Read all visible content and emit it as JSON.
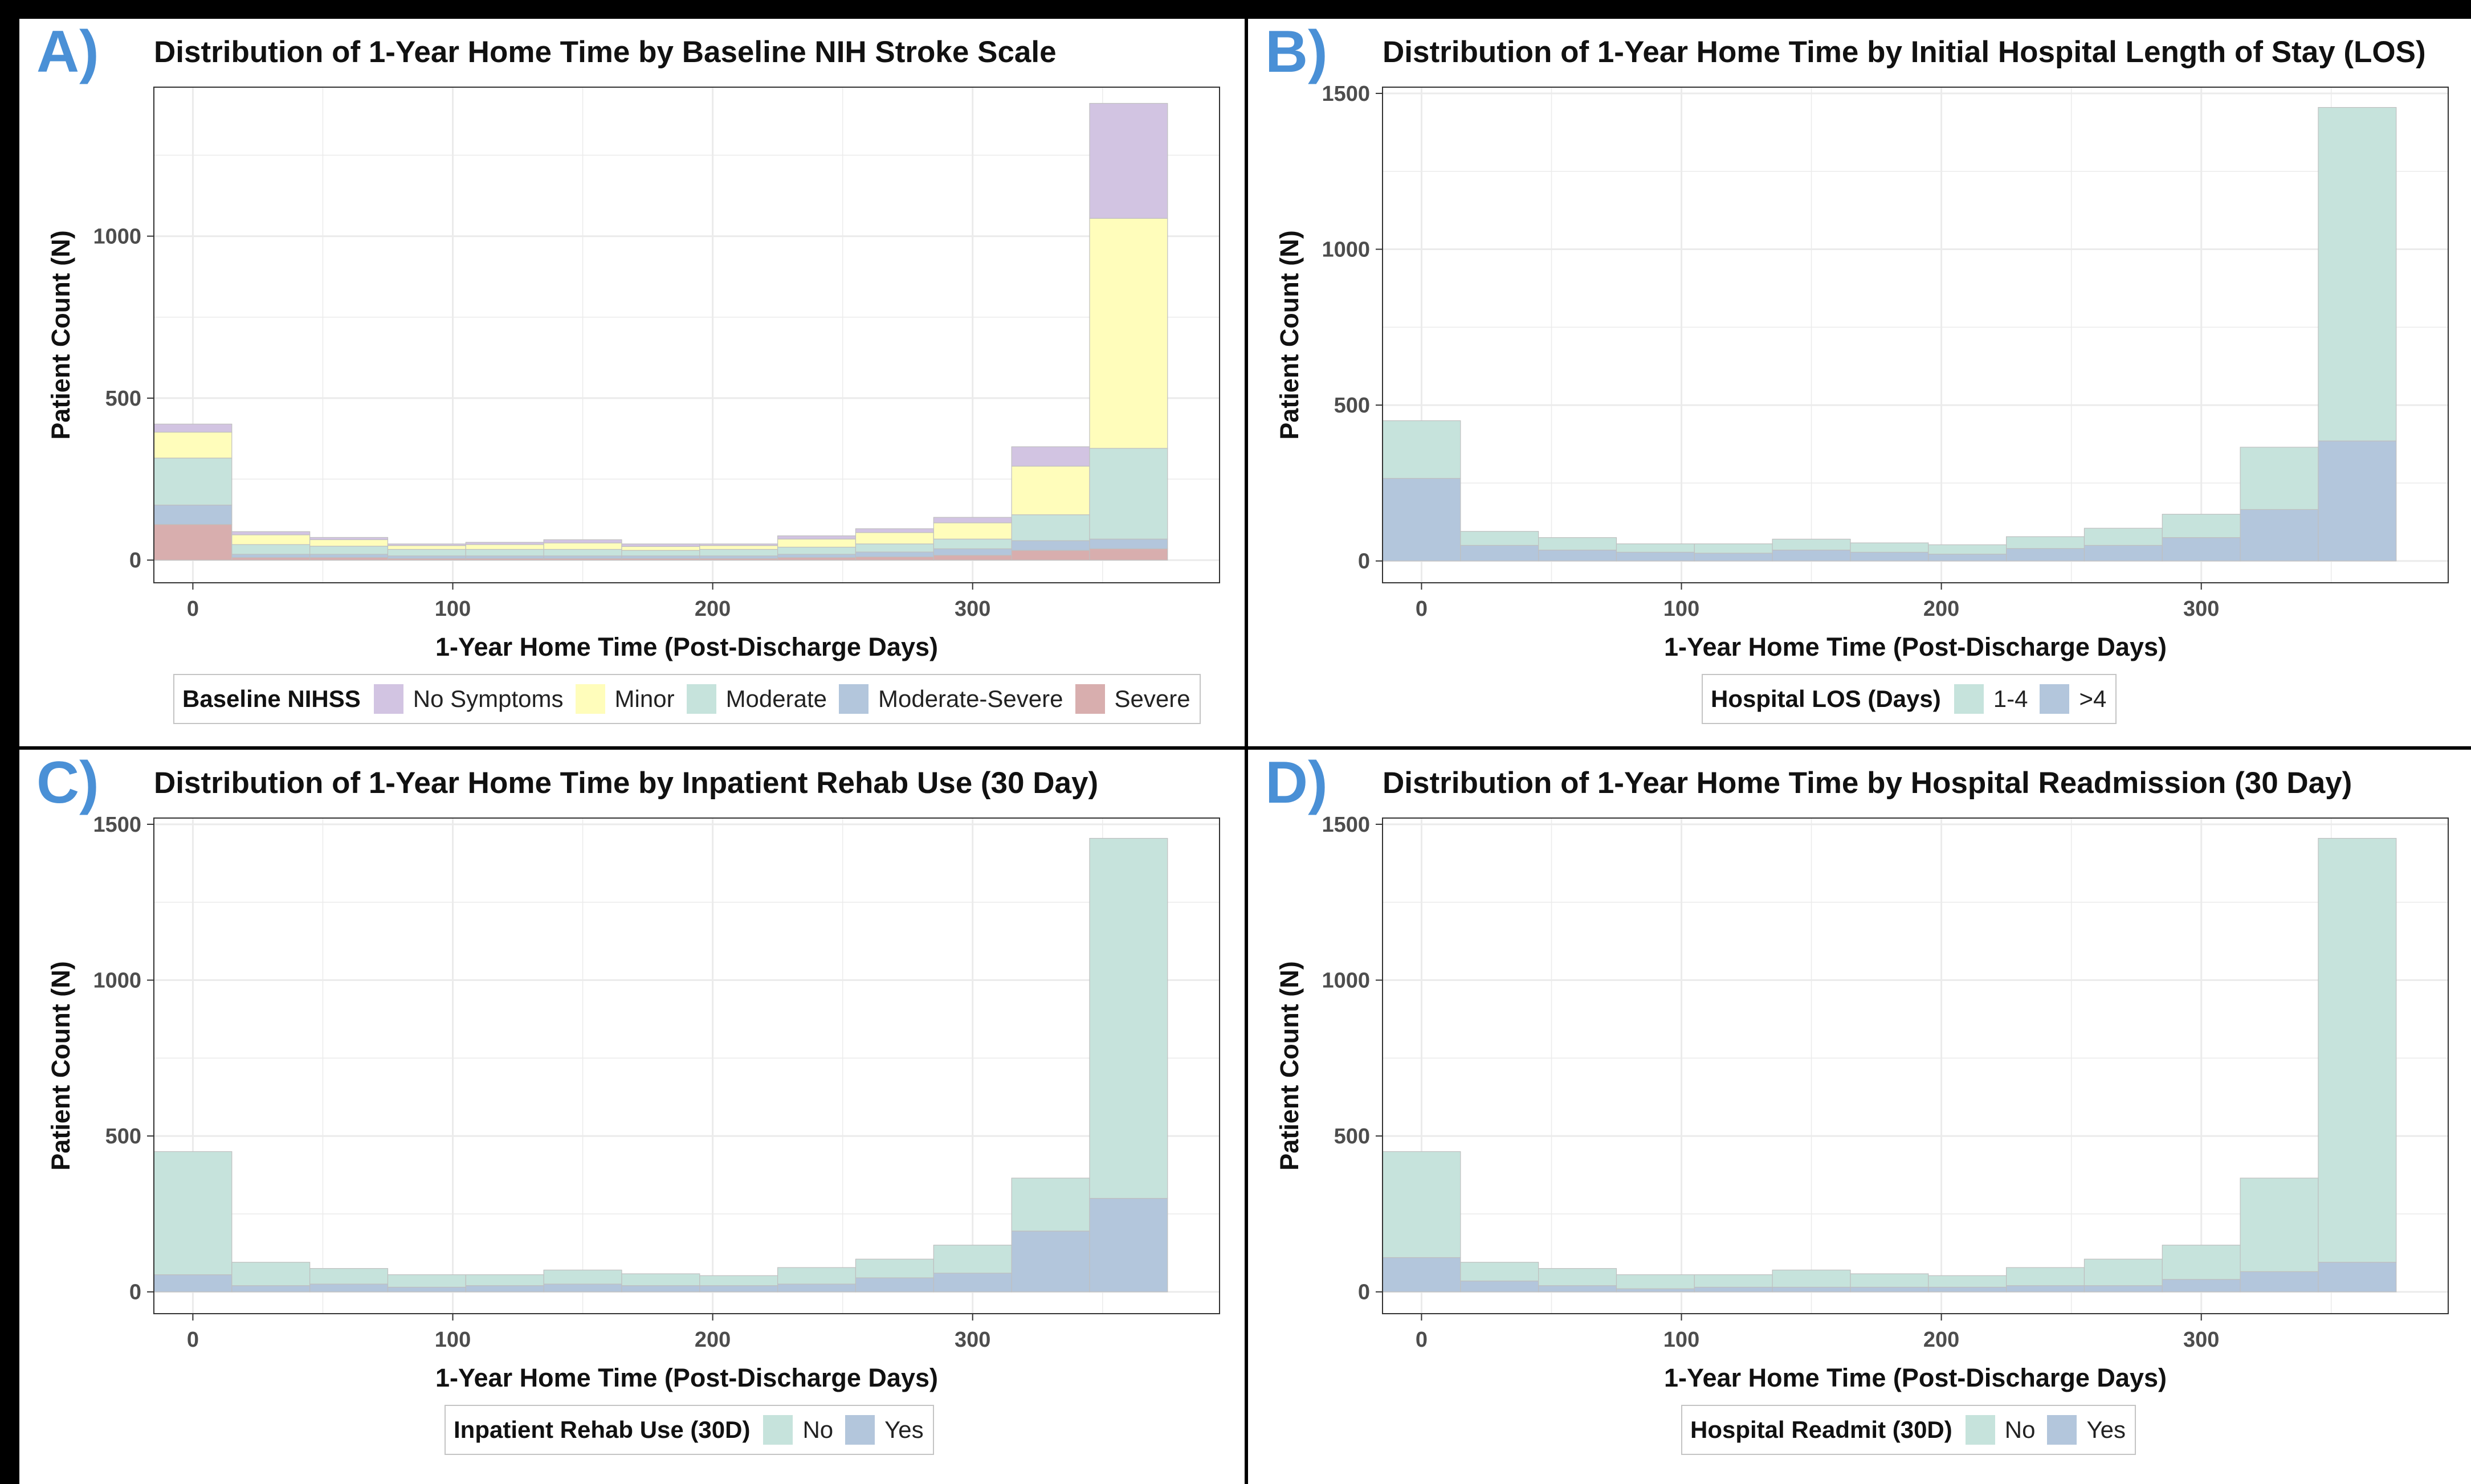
{
  "colors": {
    "no_symptoms": "#d2c4e2",
    "minor": "#fffdbb",
    "moderate": "#c6e3dc",
    "moderate_severe": "#b3c6dc",
    "severe": "#d8aeae",
    "grid": "#ebebeb",
    "bar_outline": "#bfbfbf",
    "accent_letter": "#4a90d6"
  },
  "panels": [
    {
      "letter": "A)",
      "legend": {
        "title": "Baseline NIHSS",
        "items": [
          {
            "label": "No Symptoms",
            "color": "#d2c4e2"
          },
          {
            "label": "Minor",
            "color": "#fffdbb"
          },
          {
            "label": "Moderate",
            "color": "#c6e3dc"
          },
          {
            "label": "Moderate-Severe",
            "color": "#b3c6dc"
          },
          {
            "label": "Severe",
            "color": "#d8aeae"
          }
        ]
      }
    },
    {
      "letter": "B)",
      "legend": {
        "title": "Hospital LOS (Days)",
        "items": [
          {
            "label": "1-4",
            "color": "#c6e3dc"
          },
          {
            "label": ">4",
            "color": "#b3c6dc"
          }
        ]
      }
    },
    {
      "letter": "C)",
      "legend": {
        "title": "Inpatient Rehab Use (30D)",
        "items": [
          {
            "label": "No",
            "color": "#c6e3dc"
          },
          {
            "label": "Yes",
            "color": "#b3c6dc"
          }
        ]
      }
    },
    {
      "letter": "D)",
      "legend": {
        "title": "Hospital Readmit (30D)",
        "items": [
          {
            "label": "No",
            "color": "#c6e3dc"
          },
          {
            "label": "Yes",
            "color": "#b3c6dc"
          }
        ]
      }
    }
  ],
  "chart_data": [
    {
      "type": "bar",
      "stacked": true,
      "histogram": true,
      "title": "Distribution of 1-Year Home Time by Baseline NIH Stroke Scale",
      "xlabel": "1-Year Home Time (Post-Discharge Days)",
      "ylabel": "Patient Count (N)",
      "xlim": [
        -15,
        395
      ],
      "ylim": [
        -70,
        1460
      ],
      "xticks": [
        0,
        100,
        200,
        300
      ],
      "yticks": [
        0,
        500,
        1000
      ],
      "bin_width": 30,
      "x": [
        0,
        30,
        60,
        90,
        120,
        150,
        180,
        210,
        240,
        270,
        300,
        330,
        360
      ],
      "series": [
        {
          "name": "Severe",
          "values": [
            110,
            8,
            8,
            5,
            5,
            5,
            5,
            5,
            8,
            10,
            15,
            30,
            35
          ]
        },
        {
          "name": "Moderate-Severe",
          "values": [
            60,
            10,
            10,
            8,
            8,
            8,
            8,
            8,
            10,
            15,
            20,
            30,
            30
          ]
        },
        {
          "name": "Moderate",
          "values": [
            145,
            30,
            25,
            20,
            20,
            20,
            17,
            20,
            22,
            25,
            30,
            80,
            280
          ]
        },
        {
          "name": "Minor",
          "values": [
            80,
            30,
            20,
            12,
            15,
            20,
            12,
            12,
            25,
            35,
            50,
            150,
            710
          ]
        },
        {
          "name": "No Symptoms",
          "values": [
            25,
            10,
            7,
            5,
            7,
            10,
            8,
            5,
            10,
            12,
            17,
            60,
            355
          ]
        }
      ]
    },
    {
      "type": "bar",
      "stacked": true,
      "histogram": true,
      "title": "Distribution of 1-Year Home Time by Initial Hospital Length of Stay (LOS)",
      "xlabel": "1-Year Home Time (Post-Discharge Days)",
      "ylabel": "Patient Count (N)",
      "xlim": [
        -15,
        395
      ],
      "ylim": [
        -70,
        1520
      ],
      "xticks": [
        0,
        100,
        200,
        300
      ],
      "yticks": [
        0,
        500,
        1000,
        1500
      ],
      "bin_width": 30,
      "x": [
        0,
        30,
        60,
        90,
        120,
        150,
        180,
        210,
        240,
        270,
        300,
        330,
        360
      ],
      "series": [
        {
          "name": ">4",
          "values": [
            265,
            50,
            35,
            28,
            25,
            35,
            28,
            22,
            40,
            50,
            75,
            165,
            385
          ]
        },
        {
          "name": "1-4",
          "values": [
            185,
            45,
            40,
            27,
            30,
            35,
            30,
            30,
            38,
            55,
            75,
            200,
            1070
          ]
        }
      ]
    },
    {
      "type": "bar",
      "stacked": true,
      "histogram": true,
      "title": "Distribution of 1-Year Home Time by Inpatient Rehab Use (30 Day)",
      "xlabel": "1-Year Home Time (Post-Discharge Days)",
      "ylabel": "Patient Count (N)",
      "xlim": [
        -15,
        395
      ],
      "ylim": [
        -70,
        1520
      ],
      "xticks": [
        0,
        100,
        200,
        300
      ],
      "yticks": [
        0,
        500,
        1000,
        1500
      ],
      "bin_width": 30,
      "x": [
        0,
        30,
        60,
        90,
        120,
        150,
        180,
        210,
        240,
        270,
        300,
        330,
        360
      ],
      "series": [
        {
          "name": "Yes",
          "values": [
            55,
            20,
            25,
            15,
            20,
            25,
            20,
            20,
            25,
            45,
            60,
            195,
            300
          ]
        },
        {
          "name": "No",
          "values": [
            395,
            75,
            50,
            40,
            35,
            45,
            38,
            32,
            53,
            60,
            90,
            170,
            1155
          ]
        }
      ]
    },
    {
      "type": "bar",
      "stacked": true,
      "histogram": true,
      "title": "Distribution of 1-Year Home Time by Hospital Readmission (30 Day)",
      "xlabel": "1-Year Home Time (Post-Discharge Days)",
      "ylabel": "Patient Count (N)",
      "xlim": [
        -15,
        395
      ],
      "ylim": [
        -70,
        1520
      ],
      "xticks": [
        0,
        100,
        200,
        300
      ],
      "yticks": [
        0,
        500,
        1000,
        1500
      ],
      "bin_width": 30,
      "x": [
        0,
        30,
        60,
        90,
        120,
        150,
        180,
        210,
        240,
        270,
        300,
        330,
        360
      ],
      "series": [
        {
          "name": "Yes",
          "values": [
            110,
            35,
            20,
            10,
            15,
            15,
            15,
            15,
            20,
            20,
            40,
            65,
            95
          ]
        },
        {
          "name": "No",
          "values": [
            340,
            60,
            55,
            45,
            40,
            55,
            43,
            37,
            58,
            85,
            110,
            300,
            1360
          ]
        }
      ]
    }
  ]
}
